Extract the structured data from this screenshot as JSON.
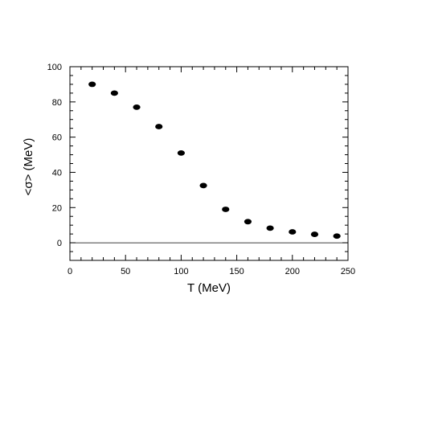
{
  "chart_data": {
    "type": "scatter",
    "title": "",
    "xlabel": "T (MeV)",
    "ylabel": "<σ> (MeV)",
    "xlim": [
      0,
      250
    ],
    "ylim": [
      -10,
      100
    ],
    "x_ticks": [
      0,
      50,
      100,
      150,
      200,
      250
    ],
    "y_ticks": [
      0,
      20,
      40,
      60,
      80,
      100
    ],
    "x_tick_labels": [
      "0",
      "50",
      "100",
      "150",
      "200",
      "250"
    ],
    "y_tick_labels": [
      "0",
      "20",
      "40",
      "60",
      "80",
      "100"
    ],
    "grid": false,
    "reference_line_y": 0,
    "marker_color": "#000000",
    "series": [
      {
        "x": [
          20,
          40,
          60,
          80,
          100,
          120,
          140,
          160,
          180,
          200,
          220,
          240
        ],
        "y": [
          90,
          85,
          77,
          66,
          51,
          32.5,
          19,
          12,
          8.3,
          6.2,
          4.8,
          3.8
        ]
      }
    ]
  }
}
